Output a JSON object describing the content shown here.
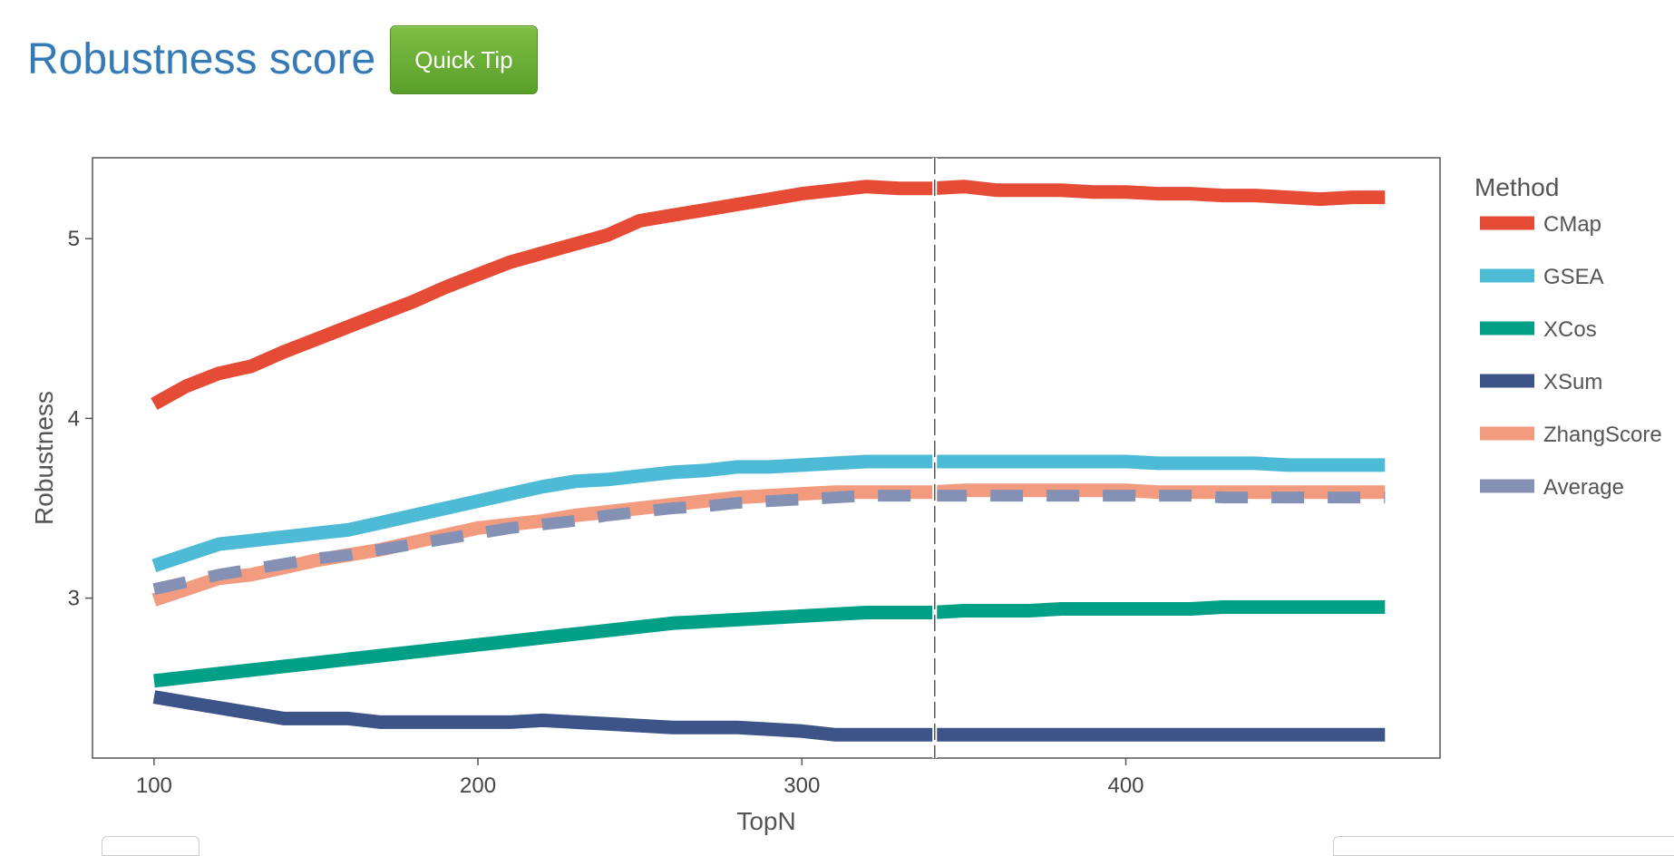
{
  "header": {
    "title": "Robustness score",
    "tip_label": "Quick Tip"
  },
  "chart_data": {
    "type": "line",
    "xlabel": "TopN",
    "ylabel": "Robustness",
    "xlim": [
      81,
      497
    ],
    "ylim": [
      2.11,
      5.45
    ],
    "xticks": [
      100,
      200,
      300,
      400
    ],
    "yticks": [
      3,
      4,
      5
    ],
    "grid": false,
    "legend": {
      "title": "Method",
      "placement": "right"
    },
    "reference_line": {
      "x": 341,
      "style": "dashed"
    },
    "x": [
      100,
      110,
      120,
      130,
      140,
      150,
      160,
      170,
      180,
      190,
      200,
      210,
      220,
      230,
      240,
      250,
      260,
      270,
      280,
      290,
      300,
      310,
      320,
      330,
      340,
      350,
      360,
      370,
      380,
      390,
      400,
      410,
      420,
      430,
      440,
      450,
      460,
      470,
      480
    ],
    "series": [
      {
        "name": "CMap",
        "color": "#e64b35",
        "dash": false,
        "values": [
          4.08,
          4.18,
          4.25,
          4.29,
          4.37,
          4.44,
          4.51,
          4.58,
          4.65,
          4.73,
          4.8,
          4.87,
          4.92,
          4.97,
          5.02,
          5.1,
          5.13,
          5.16,
          5.19,
          5.22,
          5.25,
          5.27,
          5.29,
          5.28,
          5.28,
          5.29,
          5.27,
          5.27,
          5.27,
          5.26,
          5.26,
          5.25,
          5.25,
          5.24,
          5.24,
          5.23,
          5.22,
          5.23,
          5.23
        ]
      },
      {
        "name": "GSEA",
        "color": "#4dbbd5",
        "dash": false,
        "values": [
          3.18,
          3.24,
          3.3,
          3.32,
          3.34,
          3.36,
          3.38,
          3.42,
          3.46,
          3.5,
          3.54,
          3.58,
          3.62,
          3.65,
          3.66,
          3.68,
          3.7,
          3.71,
          3.73,
          3.73,
          3.74,
          3.75,
          3.76,
          3.76,
          3.76,
          3.76,
          3.76,
          3.76,
          3.76,
          3.76,
          3.76,
          3.75,
          3.75,
          3.75,
          3.75,
          3.74,
          3.74,
          3.74,
          3.74
        ]
      },
      {
        "name": "XCos",
        "color": "#00a087",
        "dash": false,
        "values": [
          2.54,
          2.56,
          2.58,
          2.6,
          2.62,
          2.64,
          2.66,
          2.68,
          2.7,
          2.72,
          2.74,
          2.76,
          2.78,
          2.8,
          2.82,
          2.84,
          2.86,
          2.87,
          2.88,
          2.89,
          2.9,
          2.91,
          2.92,
          2.92,
          2.92,
          2.93,
          2.93,
          2.93,
          2.94,
          2.94,
          2.94,
          2.94,
          2.94,
          2.95,
          2.95,
          2.95,
          2.95,
          2.95,
          2.95
        ]
      },
      {
        "name": "XSum",
        "color": "#3c5488",
        "dash": false,
        "values": [
          2.45,
          2.42,
          2.39,
          2.36,
          2.33,
          2.33,
          2.33,
          2.31,
          2.31,
          2.31,
          2.31,
          2.31,
          2.32,
          2.31,
          2.3,
          2.29,
          2.28,
          2.28,
          2.28,
          2.27,
          2.26,
          2.24,
          2.24,
          2.24,
          2.24,
          2.24,
          2.24,
          2.24,
          2.24,
          2.24,
          2.24,
          2.24,
          2.24,
          2.24,
          2.24,
          2.24,
          2.24,
          2.24,
          2.24
        ]
      },
      {
        "name": "ZhangScore",
        "color": "#f39b7f",
        "dash": false,
        "values": [
          2.99,
          3.05,
          3.11,
          3.13,
          3.17,
          3.21,
          3.24,
          3.27,
          3.31,
          3.35,
          3.39,
          3.41,
          3.43,
          3.46,
          3.48,
          3.5,
          3.52,
          3.54,
          3.56,
          3.57,
          3.58,
          3.59,
          3.59,
          3.59,
          3.59,
          3.6,
          3.6,
          3.6,
          3.6,
          3.6,
          3.6,
          3.59,
          3.59,
          3.59,
          3.59,
          3.59,
          3.59,
          3.59,
          3.59
        ]
      },
      {
        "name": "Average",
        "color": "#8491b4",
        "dash": true,
        "values": [
          3.05,
          3.09,
          3.13,
          3.16,
          3.19,
          3.22,
          3.24,
          3.27,
          3.3,
          3.33,
          3.36,
          3.39,
          3.41,
          3.43,
          3.46,
          3.48,
          3.5,
          3.51,
          3.53,
          3.54,
          3.55,
          3.56,
          3.57,
          3.57,
          3.57,
          3.57,
          3.57,
          3.57,
          3.57,
          3.57,
          3.57,
          3.57,
          3.57,
          3.56,
          3.56,
          3.56,
          3.56,
          3.56,
          3.56
        ]
      }
    ]
  }
}
